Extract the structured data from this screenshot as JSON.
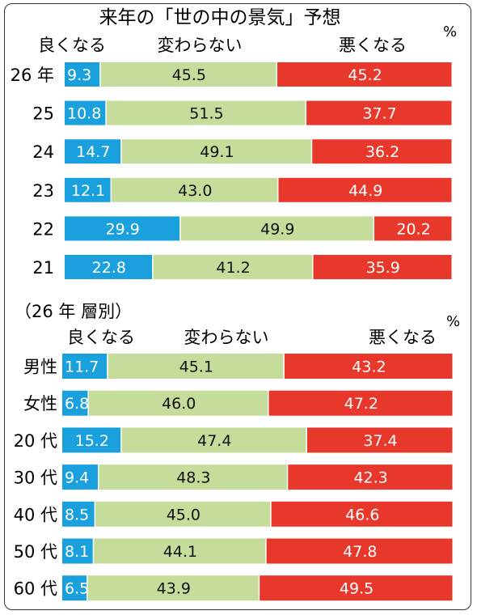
{
  "chart_data": [
    {
      "type": "bar",
      "stacked": true,
      "orientation": "horizontal",
      "title": "来年の「世の中の景気」予想",
      "unit": "%",
      "legend": [
        "良くなる",
        "変わらない",
        "悪くなる"
      ],
      "categories": [
        "26 年",
        "25",
        "24",
        "23",
        "22",
        "21"
      ],
      "series": [
        {
          "name": "良くなる",
          "values": [
            9.3,
            10.8,
            14.7,
            12.1,
            29.9,
            22.8
          ]
        },
        {
          "name": "変わらない",
          "values": [
            45.5,
            51.5,
            49.1,
            43.0,
            49.9,
            41.2
          ]
        },
        {
          "name": "悪くなる",
          "values": [
            45.2,
            37.7,
            36.2,
            44.9,
            20.2,
            35.9
          ]
        }
      ],
      "xlim": [
        0,
        100
      ]
    },
    {
      "type": "bar",
      "stacked": true,
      "orientation": "horizontal",
      "title": "（26 年 層別）",
      "unit": "%",
      "legend": [
        "良くなる",
        "変わらない",
        "悪くなる"
      ],
      "categories": [
        "男性",
        "女性",
        "20 代",
        "30 代",
        "40 代",
        "50 代",
        "60 代"
      ],
      "series": [
        {
          "name": "良くなる",
          "values": [
            11.7,
            6.8,
            15.2,
            9.4,
            8.5,
            8.1,
            6.5
          ]
        },
        {
          "name": "変わらない",
          "values": [
            45.1,
            46.0,
            47.4,
            48.3,
            45.0,
            44.1,
            43.9
          ]
        },
        {
          "name": "悪くなる",
          "values": [
            43.2,
            47.2,
            37.4,
            42.3,
            46.6,
            47.8,
            49.5
          ]
        }
      ],
      "xlim": [
        0,
        100
      ]
    }
  ],
  "colors": {
    "good": "#1aa1dd",
    "same": "#c6dc9a",
    "bad": "#e8382c",
    "good_text": "#ffffff",
    "same_text": "#111111",
    "bad_text": "#ffffff"
  }
}
